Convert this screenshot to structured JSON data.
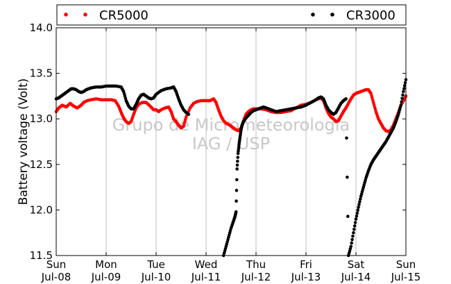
{
  "chart_data": {
    "type": "scatter",
    "ylabel": "Battery voltage (Volt)",
    "ylim": [
      11.5,
      14.0
    ],
    "yticks": [
      "11.5",
      "12.0",
      "12.5",
      "13.0",
      "13.5",
      "14.0"
    ],
    "xlim_days": [
      0,
      7
    ],
    "xticks": [
      {
        "day": "Sun",
        "date": "Jul-08"
      },
      {
        "day": "Mon",
        "date": "Jul-09"
      },
      {
        "day": "Tue",
        "date": "Jul-10"
      },
      {
        "day": "Wed",
        "date": "Jul-11"
      },
      {
        "day": "Thu",
        "date": "Jul-12"
      },
      {
        "day": "Fri",
        "date": "Jul-13"
      },
      {
        "day": "Sat",
        "date": "Jul-14"
      },
      {
        "day": "Sun",
        "date": "Jul-15"
      }
    ],
    "grid": "vertical",
    "legend_placement": "top",
    "watermark": [
      "Grupo de Micrometeorologia",
      "IAG / USP"
    ],
    "series": [
      {
        "name": "CR5000",
        "color": "#ff0000",
        "points": [
          [
            0.0,
            13.08
          ],
          [
            0.05,
            13.12
          ],
          [
            0.12,
            13.15
          ],
          [
            0.2,
            13.13
          ],
          [
            0.28,
            13.17
          ],
          [
            0.35,
            13.14
          ],
          [
            0.42,
            13.12
          ],
          [
            0.5,
            13.15
          ],
          [
            0.55,
            13.18
          ],
          [
            0.62,
            13.2
          ],
          [
            0.7,
            13.21
          ],
          [
            0.8,
            13.22
          ],
          [
            0.9,
            13.21
          ],
          [
            1.0,
            13.21
          ],
          [
            1.1,
            13.21
          ],
          [
            1.18,
            13.2
          ],
          [
            1.25,
            13.14
          ],
          [
            1.3,
            13.07
          ],
          [
            1.35,
            13.01
          ],
          [
            1.4,
            12.97
          ],
          [
            1.45,
            12.95
          ],
          [
            1.5,
            12.97
          ],
          [
            1.55,
            13.05
          ],
          [
            1.6,
            13.12
          ],
          [
            1.65,
            13.16
          ],
          [
            1.72,
            13.18
          ],
          [
            1.8,
            13.18
          ],
          [
            1.88,
            13.14
          ],
          [
            1.95,
            13.1
          ],
          [
            2.0,
            13.1
          ],
          [
            2.05,
            13.08
          ],
          [
            2.1,
            13.1
          ],
          [
            2.18,
            13.12
          ],
          [
            2.25,
            13.13
          ],
          [
            2.3,
            13.08
          ],
          [
            2.35,
            13.0
          ],
          [
            2.4,
            12.97
          ],
          [
            2.45,
            12.93
          ],
          [
            2.5,
            12.9
          ],
          [
            2.55,
            12.92
          ],
          [
            2.6,
            13.02
          ],
          [
            2.68,
            13.12
          ],
          [
            2.75,
            13.17
          ],
          [
            2.82,
            13.19
          ],
          [
            2.9,
            13.2
          ],
          [
            3.0,
            13.2
          ],
          [
            3.08,
            13.2
          ],
          [
            3.15,
            13.22
          ],
          [
            3.2,
            13.18
          ],
          [
            3.25,
            13.1
          ],
          [
            3.3,
            13.03
          ],
          [
            3.35,
            12.98
          ],
          [
            3.4,
            12.95
          ],
          [
            3.45,
            12.94
          ],
          [
            3.5,
            12.92
          ],
          [
            3.55,
            12.9
          ],
          [
            3.6,
            12.88
          ],
          [
            3.65,
            12.87
          ],
          [
            3.7,
            12.9
          ],
          [
            3.75,
            12.98
          ],
          [
            3.8,
            13.05
          ],
          [
            3.85,
            13.08
          ],
          [
            3.9,
            13.1
          ],
          [
            3.95,
            13.11
          ],
          [
            4.0,
            13.11
          ],
          [
            4.1,
            13.11
          ],
          [
            4.2,
            13.1
          ],
          [
            4.3,
            13.08
          ],
          [
            4.4,
            13.07
          ],
          [
            4.5,
            13.07
          ],
          [
            4.6,
            13.08
          ],
          [
            4.7,
            13.09
          ],
          [
            4.8,
            13.12
          ],
          [
            4.9,
            13.15
          ],
          [
            5.0,
            13.16
          ],
          [
            5.1,
            13.18
          ],
          [
            5.2,
            13.21
          ],
          [
            5.3,
            13.23
          ],
          [
            5.35,
            13.2
          ],
          [
            5.4,
            13.12
          ],
          [
            5.45,
            13.06
          ],
          [
            5.5,
            13.02
          ],
          [
            5.55,
            13.0
          ],
          [
            5.6,
            12.97
          ],
          [
            5.65,
            12.98
          ],
          [
            5.7,
            13.03
          ],
          [
            5.75,
            13.08
          ],
          [
            5.8,
            13.12
          ],
          [
            5.85,
            13.17
          ],
          [
            5.9,
            13.22
          ],
          [
            5.95,
            13.26
          ],
          [
            6.0,
            13.28
          ],
          [
            6.05,
            13.29
          ],
          [
            6.1,
            13.3
          ],
          [
            6.15,
            13.31
          ],
          [
            6.2,
            13.32
          ],
          [
            6.25,
            13.32
          ],
          [
            6.3,
            13.28
          ],
          [
            6.35,
            13.18
          ],
          [
            6.4,
            13.08
          ],
          [
            6.45,
            13.0
          ],
          [
            6.5,
            12.95
          ],
          [
            6.55,
            12.9
          ],
          [
            6.6,
            12.87
          ],
          [
            6.65,
            12.86
          ],
          [
            6.7,
            12.88
          ],
          [
            6.75,
            12.93
          ],
          [
            6.8,
            13.0
          ],
          [
            6.85,
            13.07
          ],
          [
            6.9,
            13.15
          ],
          [
            6.95,
            13.2
          ],
          [
            7.0,
            13.25
          ]
        ]
      },
      {
        "name": "CR3000",
        "color": "#000000",
        "points": [
          [
            0.0,
            13.22
          ],
          [
            0.05,
            13.23
          ],
          [
            0.1,
            13.25
          ],
          [
            0.15,
            13.27
          ],
          [
            0.2,
            13.29
          ],
          [
            0.25,
            13.31
          ],
          [
            0.3,
            13.33
          ],
          [
            0.35,
            13.33
          ],
          [
            0.4,
            13.32
          ],
          [
            0.45,
            13.3
          ],
          [
            0.5,
            13.29
          ],
          [
            0.55,
            13.3
          ],
          [
            0.6,
            13.32
          ],
          [
            0.65,
            13.33
          ],
          [
            0.7,
            13.34
          ],
          [
            0.8,
            13.35
          ],
          [
            0.9,
            13.35
          ],
          [
            1.0,
            13.36
          ],
          [
            1.1,
            13.36
          ],
          [
            1.2,
            13.36
          ],
          [
            1.3,
            13.35
          ],
          [
            1.35,
            13.3
          ],
          [
            1.4,
            13.2
          ],
          [
            1.45,
            13.14
          ],
          [
            1.5,
            13.11
          ],
          [
            1.55,
            13.11
          ],
          [
            1.6,
            13.16
          ],
          [
            1.65,
            13.22
          ],
          [
            1.7,
            13.26
          ],
          [
            1.75,
            13.27
          ],
          [
            1.8,
            13.25
          ],
          [
            1.85,
            13.23
          ],
          [
            1.9,
            13.22
          ],
          [
            1.95,
            13.23
          ],
          [
            2.0,
            13.27
          ],
          [
            2.1,
            13.31
          ],
          [
            2.2,
            13.33
          ],
          [
            2.3,
            13.34
          ],
          [
            2.35,
            13.35
          ],
          [
            2.4,
            13.3
          ],
          [
            2.45,
            13.22
          ],
          [
            2.5,
            13.15
          ],
          [
            2.55,
            13.1
          ],
          [
            2.6,
            13.07
          ],
          [
            2.65,
            13.05
          ],
          [
            3.35,
            11.5
          ],
          [
            3.4,
            11.6
          ],
          [
            3.45,
            11.7
          ],
          [
            3.5,
            11.8
          ],
          [
            3.55,
            11.88
          ],
          [
            3.58,
            11.93
          ],
          [
            3.6,
            11.98
          ],
          [
            3.62,
            12.45
          ],
          [
            3.64,
            12.62
          ],
          [
            3.66,
            12.72
          ],
          [
            3.68,
            12.8
          ],
          [
            3.7,
            12.88
          ],
          [
            3.72,
            12.93
          ],
          [
            3.75,
            12.97
          ],
          [
            3.8,
            13.01
          ],
          [
            3.85,
            13.04
          ],
          [
            3.9,
            13.07
          ],
          [
            3.95,
            13.09
          ],
          [
            4.0,
            13.1
          ],
          [
            4.05,
            13.11
          ],
          [
            4.1,
            13.12
          ],
          [
            4.15,
            13.13
          ],
          [
            4.2,
            13.12
          ],
          [
            4.25,
            13.11
          ],
          [
            4.3,
            13.1
          ],
          [
            4.4,
            13.08
          ],
          [
            4.5,
            13.09
          ],
          [
            4.6,
            13.1
          ],
          [
            4.7,
            13.11
          ],
          [
            4.8,
            13.12
          ],
          [
            4.9,
            13.13
          ],
          [
            5.0,
            13.15
          ],
          [
            5.1,
            13.18
          ],
          [
            5.2,
            13.21
          ],
          [
            5.25,
            13.23
          ],
          [
            5.3,
            13.24
          ],
          [
            5.35,
            13.22
          ],
          [
            5.4,
            13.15
          ],
          [
            5.45,
            13.1
          ],
          [
            5.5,
            13.07
          ],
          [
            5.55,
            13.05
          ],
          [
            5.6,
            13.07
          ],
          [
            5.65,
            13.12
          ],
          [
            5.7,
            13.17
          ],
          [
            5.75,
            13.2
          ],
          [
            5.8,
            13.22
          ],
          [
            5.85,
            11.5
          ],
          [
            5.9,
            11.6
          ],
          [
            5.95,
            11.75
          ],
          [
            6.0,
            11.9
          ],
          [
            6.05,
            12.03
          ],
          [
            6.1,
            12.15
          ],
          [
            6.15,
            12.25
          ],
          [
            6.2,
            12.35
          ],
          [
            6.25,
            12.43
          ],
          [
            6.3,
            12.5
          ],
          [
            6.35,
            12.55
          ],
          [
            6.4,
            12.59
          ],
          [
            6.45,
            12.63
          ],
          [
            6.5,
            12.67
          ],
          [
            6.55,
            12.71
          ],
          [
            6.6,
            12.75
          ],
          [
            6.65,
            12.8
          ],
          [
            6.7,
            12.85
          ],
          [
            6.75,
            12.9
          ],
          [
            6.8,
            12.97
          ],
          [
            6.85,
            13.05
          ],
          [
            6.9,
            13.15
          ],
          [
            6.95,
            13.3
          ],
          [
            7.0,
            13.43
          ]
        ]
      }
    ]
  }
}
